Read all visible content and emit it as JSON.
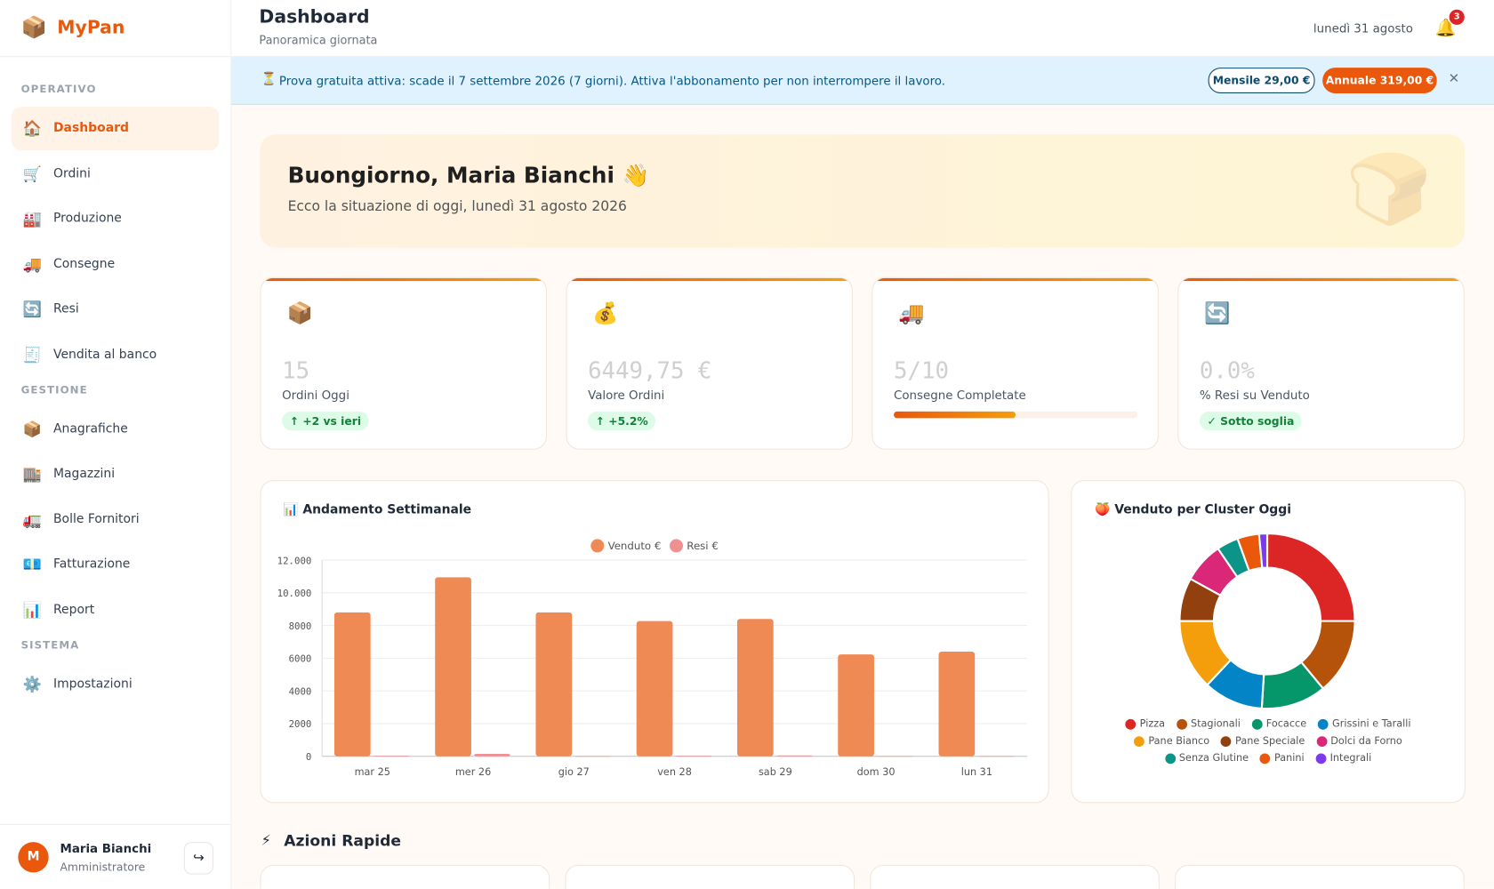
{
  "sidebar": {
    "logo": "📦",
    "brand": "MyPan",
    "sections": [
      {
        "title": "OPERATIVO",
        "items": [
          {
            "icon": "🏠",
            "label": "Dashboard"
          },
          {
            "icon": "🛒",
            "label": "Ordini"
          },
          {
            "icon": "🏭",
            "label": "Produzione"
          },
          {
            "icon": "🚚",
            "label": "Consegne"
          },
          {
            "icon": "🔄",
            "label": "Resi"
          },
          {
            "icon": "🧾",
            "label": "Vendita al banco"
          }
        ]
      },
      {
        "title": "GESTIONE",
        "items": [
          {
            "icon": "📦",
            "label": "Anagrafiche"
          },
          {
            "icon": "🏬",
            "label": "Magazzini"
          },
          {
            "icon": "🚛",
            "label": "Bolle Fornitori"
          },
          {
            "icon": "💶",
            "label": "Fatturazione"
          },
          {
            "icon": "📊",
            "label": "Report"
          }
        ]
      },
      {
        "title": "SISTEMA",
        "items": [
          {
            "icon": "⚙️",
            "label": "Impostazioni"
          }
        ]
      }
    ],
    "user": {
      "initial": "M",
      "name": "Maria Bianchi",
      "role": "Amministratore",
      "logout": "↪"
    }
  },
  "header": {
    "title": "Dashboard",
    "subtitle": "Panoramica giornata",
    "date": "lunedì 31 agosto",
    "bell": "🔔",
    "notifications": "3"
  },
  "banner": {
    "icon": "⏳",
    "text": "Prova gratuita attiva: scade il 7 settembre 2026 (7 giorni). Attiva l'abbonamento per non interrompere il lavoro.",
    "monthly": "Mensile 29,00 €",
    "annual": "Annuale 319,00 €",
    "close": "✕"
  },
  "welcome": {
    "title": "Buongiorno, Maria Bianchi 👋",
    "subtitle": "Ecco la situazione di oggi, lunedì 31 agosto 2026",
    "decor": "🍞"
  },
  "stats": [
    {
      "icon": "📦",
      "value": "15",
      "label": "Ordini Oggi",
      "badge": "↑ +2 vs ieri"
    },
    {
      "icon": "💰",
      "value": "6449,75 €",
      "label": "Valore Ordini",
      "badge": "↑ +5.2%"
    },
    {
      "icon": "🚚",
      "value": "5/10",
      "label": "Consegne Completate",
      "progress": 50
    },
    {
      "icon": "🔄",
      "value": "0.0%",
      "label": "% Resi su Venduto",
      "badge": "✓ Sotto soglia"
    }
  ],
  "chart_data": [
    {
      "type": "bar",
      "title": "📊 Andamento Settimanale",
      "categories": [
        "mar 25",
        "mer 26",
        "gio 27",
        "ven 28",
        "sab 29",
        "dom 30",
        "lun 31"
      ],
      "series": [
        {
          "name": "Venduto €",
          "color": "#f08a55",
          "values": [
            8800,
            10950,
            8800,
            8270,
            8400,
            6230,
            6400
          ]
        },
        {
          "name": "Resi €",
          "color": "#f09090",
          "values": [
            40,
            150,
            0,
            40,
            50,
            0,
            0
          ]
        }
      ],
      "ylim": [
        0,
        12000
      ],
      "yticks": [
        0,
        2000,
        4000,
        6000,
        8000,
        {
          "value": 10000,
          "label": "10.000"
        },
        {
          "value": 12000,
          "label": "12.000"
        }
      ],
      "grid": true,
      "legend": "top"
    },
    {
      "type": "pie",
      "title": "🍑 Venduto per Cluster Oggi",
      "categories": [
        "Pizza",
        "Stagionali",
        "Focacce",
        "Grissini e Taralli",
        "Pane Bianco",
        "Pane Speciale",
        "Dolci da Forno",
        "Senza Glutine",
        "Panini",
        "Integrali"
      ],
      "values": [
        25,
        14,
        12,
        11,
        13,
        8,
        7.5,
        4,
        4,
        1.5
      ],
      "colors": [
        "#dc2626",
        "#b45309",
        "#059669",
        "#0284c7",
        "#f59e0b",
        "#92400e",
        "#db2777",
        "#0d9488",
        "#ea580c",
        "#7c3aed"
      ],
      "legend": "bottom"
    }
  ],
  "quick_actions": {
    "icon": "⚡",
    "title": "Azioni Rapide"
  }
}
